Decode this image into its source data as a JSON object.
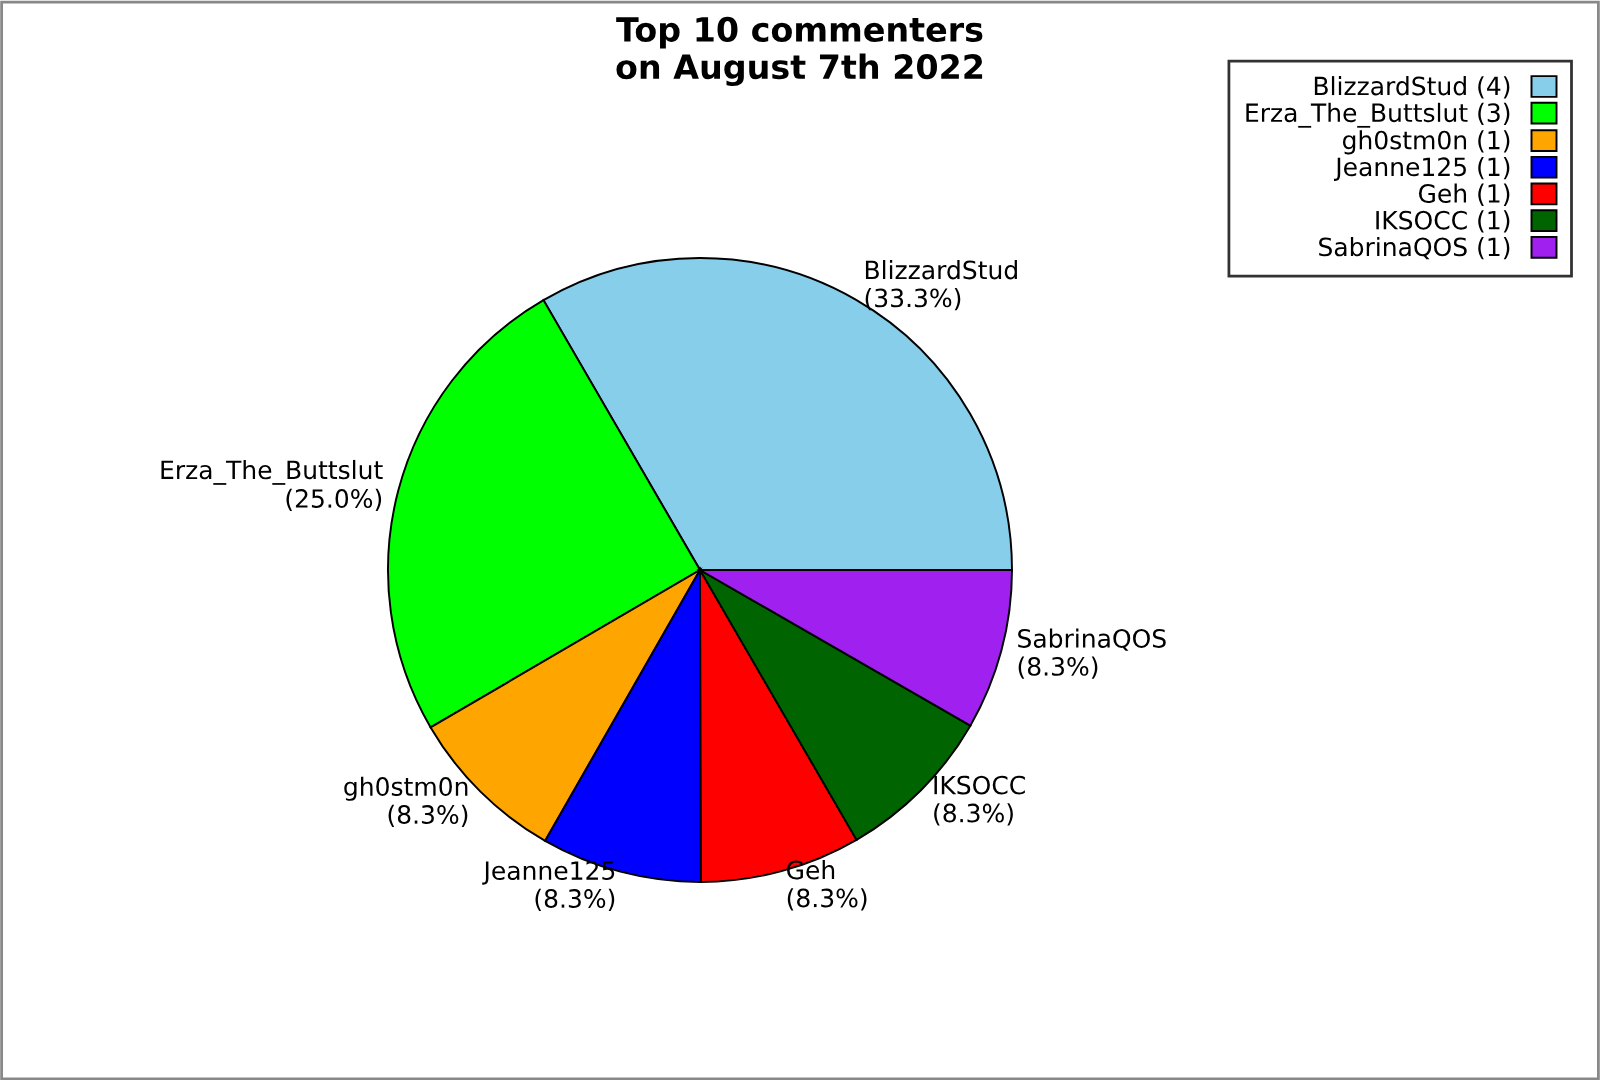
{
  "chart_data": {
    "type": "pie",
    "title": "Top 10 commenters\non August 7th 2022",
    "categories": [
      "BlizzardStud",
      "Erza_The_Buttslut",
      "gh0stm0n",
      "Jeanne125",
      "Geh",
      "IKSOCC",
      "SabrinaQOS"
    ],
    "values": [
      33.3,
      25.0,
      8.3,
      8.3,
      8.3,
      8.3,
      8.3
    ],
    "annotations": [
      "BlizzardStud (4)",
      "Erza_The_Buttslut (3)",
      "gh0stm0n (1)",
      "Jeanne125 (1)",
      "Geh (1)",
      "IKSOCC (1)",
      "SabrinaQOS (1)"
    ],
    "value_labels": [
      "(33.3%)",
      "(25.0%)",
      "(8.3%)",
      "(8.3%)",
      "(8.3%)",
      "(8.3%)",
      "(8.3%)"
    ],
    "colors": [
      "#87ceeb",
      "#00ff00",
      "#ffa500",
      "#0000ff",
      "#ff0000",
      "#006400",
      "#a020f0"
    ]
  }
}
